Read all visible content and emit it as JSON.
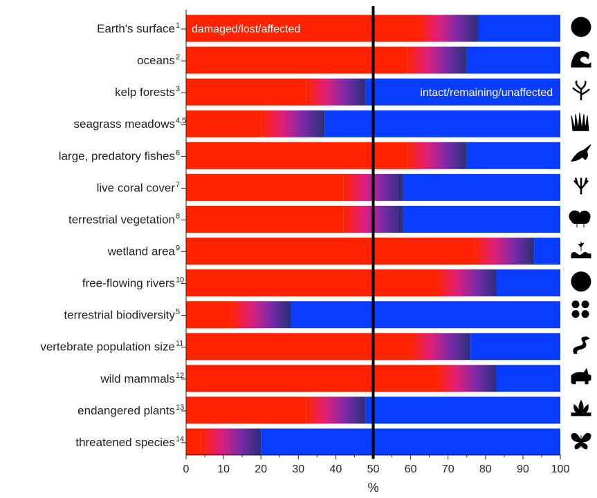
{
  "chart_data": {
    "type": "bar",
    "subtype": "horizontal-stacked-gradient",
    "categories": [
      {
        "label": "Earth's surface",
        "ref": "1"
      },
      {
        "label": "oceans",
        "ref": "2"
      },
      {
        "label": "kelp forests",
        "ref": "3"
      },
      {
        "label": "seagrass meadows",
        "ref": "4,5"
      },
      {
        "label": "large, predatory fishes",
        "ref": "6"
      },
      {
        "label": "live coral cover",
        "ref": "7"
      },
      {
        "label": "terrestrial vegetation",
        "ref": "8"
      },
      {
        "label": "wetland area",
        "ref": "9"
      },
      {
        "label": "free-flowing rivers",
        "ref": "10"
      },
      {
        "label": "terrestrial biodiversity",
        "ref": "5"
      },
      {
        "label": "vertebrate population size",
        "ref": "11"
      },
      {
        "label": "wild mammals",
        "ref": "12"
      },
      {
        "label": "endangered plants",
        "ref": "13"
      },
      {
        "label": "threatened species",
        "ref": "14"
      }
    ],
    "series": [
      {
        "name": "damaged/lost/affected",
        "color": "#ff2200",
        "low": [
          62,
          59,
          32,
          20,
          59,
          42,
          42,
          77,
          67,
          12,
          60,
          67,
          32,
          4
        ],
        "high": [
          78,
          75,
          48,
          37,
          75,
          58,
          58,
          93,
          83,
          28,
          76,
          83,
          48,
          20
        ]
      },
      {
        "name": "intact/remaining/unaffected",
        "color": "#0a3cff"
      }
    ],
    "gradient_colors": [
      "#ff2200",
      "#e0207a",
      "#7a2aa8",
      "#2a2f7a"
    ],
    "xlim": [
      0,
      100
    ],
    "xticks": [
      0,
      10,
      20,
      30,
      40,
      50,
      60,
      70,
      80,
      90,
      100
    ],
    "xlabel": "%",
    "reference_line": 50,
    "annotations": [
      {
        "text": "damaged/lost/affected",
        "row": 0
      },
      {
        "text": "intact/remaining/unaffected",
        "row": 2
      }
    ],
    "icons": [
      "globe-icon",
      "wave-icon",
      "kelp-icon",
      "seagrass-icon",
      "marlin-icon",
      "coral-icon",
      "trees-icon",
      "wetland-icon",
      "river-icon",
      "biodiversity-icon",
      "snake-icon",
      "rhino-icon",
      "lotus-icon",
      "butterfly-icon"
    ]
  }
}
